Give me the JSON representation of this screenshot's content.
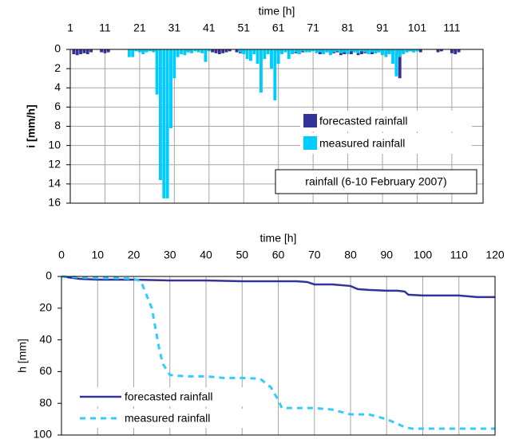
{
  "chart_data": [
    {
      "type": "bar",
      "x_label": "time [h]",
      "y_label": "i [mm/h]",
      "annotation": "rainfall (6-10 February 2007)",
      "x_axis_position": "top",
      "y_inverted": true,
      "grid": "both",
      "legend": "center-right",
      "x": [
        1,
        2,
        3,
        4,
        5,
        6,
        7,
        8,
        9,
        10,
        11,
        12,
        13,
        14,
        15,
        16,
        17,
        18,
        19,
        20,
        21,
        22,
        23,
        24,
        25,
        26,
        27,
        28,
        29,
        30,
        31,
        32,
        33,
        34,
        35,
        36,
        37,
        38,
        39,
        40,
        41,
        42,
        43,
        44,
        45,
        46,
        47,
        48,
        49,
        50,
        51,
        52,
        53,
        54,
        55,
        56,
        57,
        58,
        59,
        60,
        61,
        62,
        63,
        64,
        65,
        66,
        67,
        68,
        69,
        70,
        71,
        72,
        73,
        74,
        75,
        76,
        77,
        78,
        79,
        80,
        81,
        82,
        83,
        84,
        85,
        86,
        87,
        88,
        89,
        90,
        91,
        92,
        93,
        94,
        95,
        96,
        97,
        98,
        99,
        100,
        101,
        102,
        103,
        104,
        105,
        106,
        107,
        108,
        109,
        110,
        111,
        112,
        113,
        114,
        115,
        116,
        117,
        118,
        119,
        120
      ],
      "series": [
        {
          "name": "forecasted rainfall",
          "color": "#333399",
          "values": [
            0,
            0.5,
            0.6,
            0.5,
            0.4,
            0.5,
            0.3,
            0,
            0,
            0.3,
            0.4,
            0.3,
            0,
            0,
            0,
            0,
            0,
            0,
            0,
            0,
            0.2,
            0.3,
            0,
            0,
            0.2,
            0,
            0,
            0,
            0,
            0,
            0,
            0,
            0,
            0,
            0.3,
            0.2,
            0,
            0,
            0,
            0,
            0,
            0.3,
            0.4,
            0.5,
            0.4,
            0.3,
            0.2,
            0,
            0.3,
            0.4,
            0.3,
            0,
            0,
            0,
            0,
            0,
            0,
            0,
            0,
            0,
            0.3,
            0.2,
            0,
            0,
            0.2,
            0.4,
            0.5,
            0.3,
            0,
            0.2,
            0,
            0.3,
            0.5,
            0.4,
            0.3,
            0.5,
            0.4,
            0.3,
            0.6,
            0.5,
            0.4,
            0.5,
            0.3,
            0.6,
            0.5,
            0.4,
            0.3,
            0.5,
            0.4,
            0.3,
            0.5,
            0.6,
            0.4,
            0.3,
            0.5,
            3.0,
            0.4,
            0.3,
            0.2,
            0.3,
            0.2,
            0.3,
            0,
            0,
            0,
            0,
            0.3,
            0.2,
            0,
            0,
            0.4,
            0.5,
            0.3,
            0,
            0,
            0,
            0,
            0,
            0,
            0
          ]
        },
        {
          "name": "measured rainfall",
          "color": "#00ccff",
          "values": [
            0,
            0,
            0,
            0,
            0,
            0,
            0,
            0,
            0,
            0,
            0,
            0,
            0,
            0,
            0,
            0,
            0,
            0.8,
            0.8,
            0.2,
            0.3,
            0.5,
            0.3,
            0.2,
            0.3,
            4.7,
            13.6,
            15.5,
            15.5,
            8.2,
            3.0,
            0.8,
            0.5,
            0.6,
            0.3,
            0.4,
            0.2,
            0.3,
            0.4,
            1.3,
            0.2,
            0,
            0,
            0,
            0,
            0,
            0,
            0,
            0,
            0.3,
            0.5,
            1.0,
            1.2,
            0.5,
            1.5,
            4.5,
            1.0,
            0.5,
            2.0,
            5.3,
            1.5,
            0.5,
            0.3,
            1.0,
            0.5,
            0.3,
            0.5,
            0.2,
            0.3,
            0.3,
            0.2,
            0.4,
            0.3,
            0.5,
            0.3,
            0.6,
            0.3,
            0.2,
            0.4,
            0.3,
            0.5,
            0.2,
            0.3,
            0.4,
            0.2,
            0.3,
            0.5,
            0.3,
            0.4,
            0.3,
            0.6,
            0.8,
            0.5,
            1.5,
            2.8,
            0.8,
            0.5,
            0.3,
            0.2,
            0.3,
            0.2,
            0,
            0,
            0,
            0,
            0,
            0,
            0,
            0,
            0,
            0,
            0,
            0,
            0,
            0,
            0,
            0,
            0,
            0,
            0
          ]
        }
      ],
      "xlim": [
        1,
        120
      ],
      "xticks": [
        1,
        11,
        21,
        31,
        41,
        51,
        61,
        71,
        81,
        91,
        101,
        111
      ],
      "ylim": [
        0,
        16
      ],
      "yticks": [
        0,
        2,
        4,
        6,
        8,
        10,
        12,
        14,
        16
      ]
    },
    {
      "type": "line",
      "x_label": "time [h]",
      "y_label": "h [mm]",
      "x_axis_position": "top",
      "y_inverted": true,
      "grid": "x",
      "legend": "lower-left",
      "series": [
        {
          "name": "forecasted rainfall",
          "color": "#333399",
          "dashed": false,
          "x": [
            0,
            5,
            10,
            20,
            30,
            40,
            50,
            55,
            60,
            65,
            68,
            70,
            75,
            80,
            82,
            85,
            90,
            93,
            95,
            96,
            100,
            110,
            115,
            120
          ],
          "values": [
            0,
            1.5,
            2,
            2,
            2.5,
            2.5,
            3,
            3,
            3,
            3,
            3.5,
            5,
            5,
            6,
            8,
            8.5,
            9,
            9,
            9.5,
            11.5,
            12,
            12,
            13,
            13
          ]
        },
        {
          "name": "measured rainfall",
          "color": "#33ccff",
          "dashed": true,
          "x": [
            0,
            5,
            10,
            15,
            20,
            22,
            25,
            27,
            28,
            30,
            31,
            35,
            40,
            45,
            50,
            55,
            58,
            60,
            61,
            65,
            70,
            75,
            80,
            85,
            90,
            95,
            97,
            100,
            110,
            120
          ],
          "values": [
            0,
            0.5,
            1,
            1,
            1.5,
            3,
            20,
            45,
            55,
            62,
            62.5,
            63,
            63,
            64,
            64,
            64.5,
            70,
            78,
            83,
            83,
            83,
            84,
            87,
            87,
            90,
            95,
            96,
            96,
            96,
            96
          ]
        }
      ],
      "xlim": [
        0,
        120
      ],
      "xticks": [
        0,
        10,
        20,
        30,
        40,
        50,
        60,
        70,
        80,
        90,
        100,
        110,
        120
      ],
      "ylim": [
        0,
        100
      ],
      "yticks": [
        0,
        20,
        40,
        60,
        80,
        100
      ]
    }
  ]
}
